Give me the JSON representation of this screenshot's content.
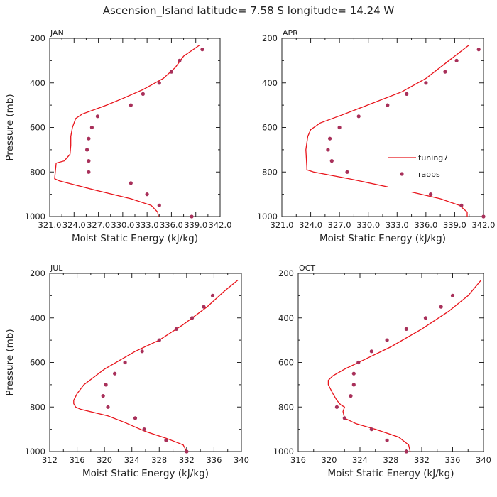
{
  "title": "Ascension_Island  latitude= 7.58 S longitude= 14.24 W",
  "colors": {
    "model": "#e8141b",
    "obs": "#a8305a",
    "axis": "#222222"
  },
  "legend": {
    "line_label": "tuning7",
    "marker_label": "raobs",
    "placement": "panel-2 right-middle"
  },
  "chart_data": [
    {
      "type": "line",
      "panel_label": "JAN",
      "xlabel": "Moist Static Energy (kJ/kg)",
      "ylabel": "Pressure (mb)",
      "xlim": [
        321.0,
        342.0
      ],
      "ylim": [
        1000,
        200
      ],
      "y_inverted": true,
      "xticks": [
        321.0,
        324.0,
        327.0,
        330.0,
        333.0,
        336.0,
        339.0,
        342.0
      ],
      "xtick_labels": [
        "321.0",
        "324.0",
        "327.0",
        "330.0",
        "333.0",
        "336.0",
        "339.0",
        "342.0"
      ],
      "yticks": [
        200,
        400,
        600,
        800,
        1000
      ],
      "show_ylabel": true,
      "series": [
        {
          "kind": "line",
          "points": [
            [
              334.4,
              1000
            ],
            [
              334.3,
              980
            ],
            [
              333.5,
              950
            ],
            [
              331.0,
              920
            ],
            [
              327.0,
              885
            ],
            [
              323.8,
              855
            ],
            [
              322.2,
              840
            ],
            [
              321.6,
              830
            ],
            [
              321.8,
              760
            ],
            [
              322.8,
              750
            ],
            [
              323.5,
              720
            ],
            [
              323.6,
              680
            ],
            [
              323.6,
              640
            ],
            [
              323.8,
              600
            ],
            [
              324.2,
              560
            ],
            [
              325.0,
              540
            ],
            [
              328.0,
              500
            ],
            [
              330.0,
              470
            ],
            [
              332.5,
              430
            ],
            [
              335.0,
              380
            ],
            [
              336.5,
              330
            ],
            [
              337.5,
              280
            ],
            [
              339.5,
              230
            ]
          ]
        },
        {
          "kind": "marker",
          "points": [
            [
              339.8,
              250
            ],
            [
              337.0,
              300
            ],
            [
              336.0,
              350
            ],
            [
              334.5,
              400
            ],
            [
              332.5,
              450
            ],
            [
              331.0,
              500
            ],
            [
              326.9,
              550
            ],
            [
              326.2,
              600
            ],
            [
              325.8,
              650
            ],
            [
              325.6,
              700
            ],
            [
              325.8,
              750
            ],
            [
              325.8,
              800
            ],
            [
              331.0,
              850
            ],
            [
              333.0,
              900
            ],
            [
              334.5,
              950
            ],
            [
              338.5,
              1000
            ]
          ]
        }
      ]
    },
    {
      "type": "line",
      "panel_label": "APR",
      "xlabel": "Moist Static Energy (kJ/kg)",
      "ylabel": "",
      "xlim": [
        321.0,
        342.0
      ],
      "ylim": [
        1000,
        200
      ],
      "y_inverted": true,
      "xticks": [
        321.0,
        324.0,
        327.0,
        330.0,
        333.0,
        336.0,
        339.0,
        342.0
      ],
      "xtick_labels": [
        "321.0",
        "324.0",
        "327.0",
        "330.0",
        "333.0",
        "336.0",
        "339.0",
        "342.0"
      ],
      "yticks": [
        200,
        400,
        600,
        800,
        1000
      ],
      "show_ylabel": false,
      "series": [
        {
          "kind": "line",
          "points": [
            [
              340.3,
              1000
            ],
            [
              340.3,
              980
            ],
            [
              339.5,
              950
            ],
            [
              337.5,
              920
            ],
            [
              334.0,
              885
            ],
            [
              328.0,
              830
            ],
            [
              324.3,
              800
            ],
            [
              323.6,
              790
            ],
            [
              323.6,
              780
            ],
            [
              323.5,
              700
            ],
            [
              323.7,
              640
            ],
            [
              324.0,
              610
            ],
            [
              325.0,
              580
            ],
            [
              327.5,
              540
            ],
            [
              330.5,
              490
            ],
            [
              333.5,
              440
            ],
            [
              336.0,
              380
            ],
            [
              337.5,
              330
            ],
            [
              339.0,
              280
            ],
            [
              340.5,
              230
            ]
          ]
        },
        {
          "kind": "marker",
          "points": [
            [
              341.5,
              250
            ],
            [
              339.2,
              300
            ],
            [
              338.0,
              350
            ],
            [
              336.0,
              400
            ],
            [
              334.0,
              450
            ],
            [
              332.0,
              500
            ],
            [
              329.0,
              550
            ],
            [
              327.0,
              600
            ],
            [
              326.0,
              650
            ],
            [
              325.8,
              700
            ],
            [
              326.2,
              750
            ],
            [
              327.8,
              800
            ],
            [
              332.5,
              850
            ],
            [
              336.5,
              900
            ],
            [
              339.7,
              950
            ],
            [
              342.0,
              1000
            ]
          ]
        }
      ]
    },
    {
      "type": "line",
      "panel_label": "JUL",
      "xlabel": "Moist Static Energy (kJ/kg)",
      "ylabel": "Pressure (mb)",
      "xlim": [
        312,
        340
      ],
      "ylim": [
        1000,
        200
      ],
      "y_inverted": true,
      "xticks": [
        312,
        316,
        320,
        324,
        328,
        332,
        336,
        340
      ],
      "xtick_labels": [
        "312",
        "316",
        "320",
        "324",
        "328",
        "332",
        "336",
        "340"
      ],
      "yticks": [
        200,
        400,
        600,
        800,
        1000
      ],
      "show_ylabel": true,
      "series": [
        {
          "kind": "line",
          "points": [
            [
              332.0,
              1000
            ],
            [
              331.5,
              970
            ],
            [
              329.0,
              940
            ],
            [
              326.0,
              910
            ],
            [
              323.0,
              870
            ],
            [
              320.5,
              840
            ],
            [
              316.5,
              810
            ],
            [
              315.8,
              800
            ],
            [
              315.5,
              785
            ],
            [
              315.5,
              770
            ],
            [
              316.0,
              740
            ],
            [
              317.0,
              700
            ],
            [
              320.0,
              630
            ],
            [
              324.5,
              550
            ],
            [
              328.0,
              500
            ],
            [
              331.5,
              430
            ],
            [
              335.0,
              350
            ],
            [
              337.5,
              280
            ],
            [
              339.5,
              230
            ]
          ]
        },
        {
          "kind": "marker",
          "points": [
            [
              335.8,
              300
            ],
            [
              334.5,
              350
            ],
            [
              332.8,
              400
            ],
            [
              330.5,
              450
            ],
            [
              328.0,
              500
            ],
            [
              325.5,
              550
            ],
            [
              323.0,
              600
            ],
            [
              321.5,
              650
            ],
            [
              320.2,
              700
            ],
            [
              319.8,
              750
            ],
            [
              320.5,
              800
            ],
            [
              324.5,
              850
            ],
            [
              325.8,
              900
            ],
            [
              329.0,
              950
            ],
            [
              332.0,
              1000
            ]
          ]
        }
      ]
    },
    {
      "type": "line",
      "panel_label": "OCT",
      "xlabel": "Moist Static Energy (kJ/kg)",
      "ylabel": "",
      "xlim": [
        316,
        340
      ],
      "ylim": [
        1000,
        200
      ],
      "y_inverted": true,
      "xticks": [
        316,
        320,
        324,
        328,
        332,
        336,
        340
      ],
      "xtick_labels": [
        "316",
        "320",
        "324",
        "328",
        "332",
        "336",
        "340"
      ],
      "yticks": [
        200,
        400,
        600,
        800,
        1000
      ],
      "show_ylabel": false,
      "series": [
        {
          "kind": "line",
          "points": [
            [
              330.5,
              1000
            ],
            [
              330.3,
              970
            ],
            [
              329.0,
              935
            ],
            [
              326.0,
              900
            ],
            [
              323.5,
              875
            ],
            [
              322.0,
              850
            ],
            [
              321.8,
              820
            ],
            [
              322.0,
              800
            ],
            [
              321.5,
              790
            ],
            [
              321.0,
              770
            ],
            [
              320.5,
              740
            ],
            [
              319.9,
              700
            ],
            [
              319.9,
              680
            ],
            [
              320.5,
              660
            ],
            [
              322.0,
              630
            ],
            [
              325.0,
              580
            ],
            [
              328.0,
              530
            ],
            [
              332.0,
              450
            ],
            [
              335.5,
              370
            ],
            [
              338.0,
              300
            ],
            [
              339.7,
              230
            ]
          ]
        },
        {
          "kind": "marker",
          "points": [
            [
              336.0,
              300
            ],
            [
              334.5,
              350
            ],
            [
              332.5,
              400
            ],
            [
              330.0,
              450
            ],
            [
              327.5,
              500
            ],
            [
              325.5,
              550
            ],
            [
              323.8,
              600
            ],
            [
              323.2,
              650
            ],
            [
              323.2,
              700
            ],
            [
              322.8,
              750
            ],
            [
              321.0,
              800
            ],
            [
              322.0,
              850
            ],
            [
              325.5,
              900
            ],
            [
              327.5,
              950
            ],
            [
              330.0,
              1000
            ]
          ]
        }
      ]
    }
  ]
}
